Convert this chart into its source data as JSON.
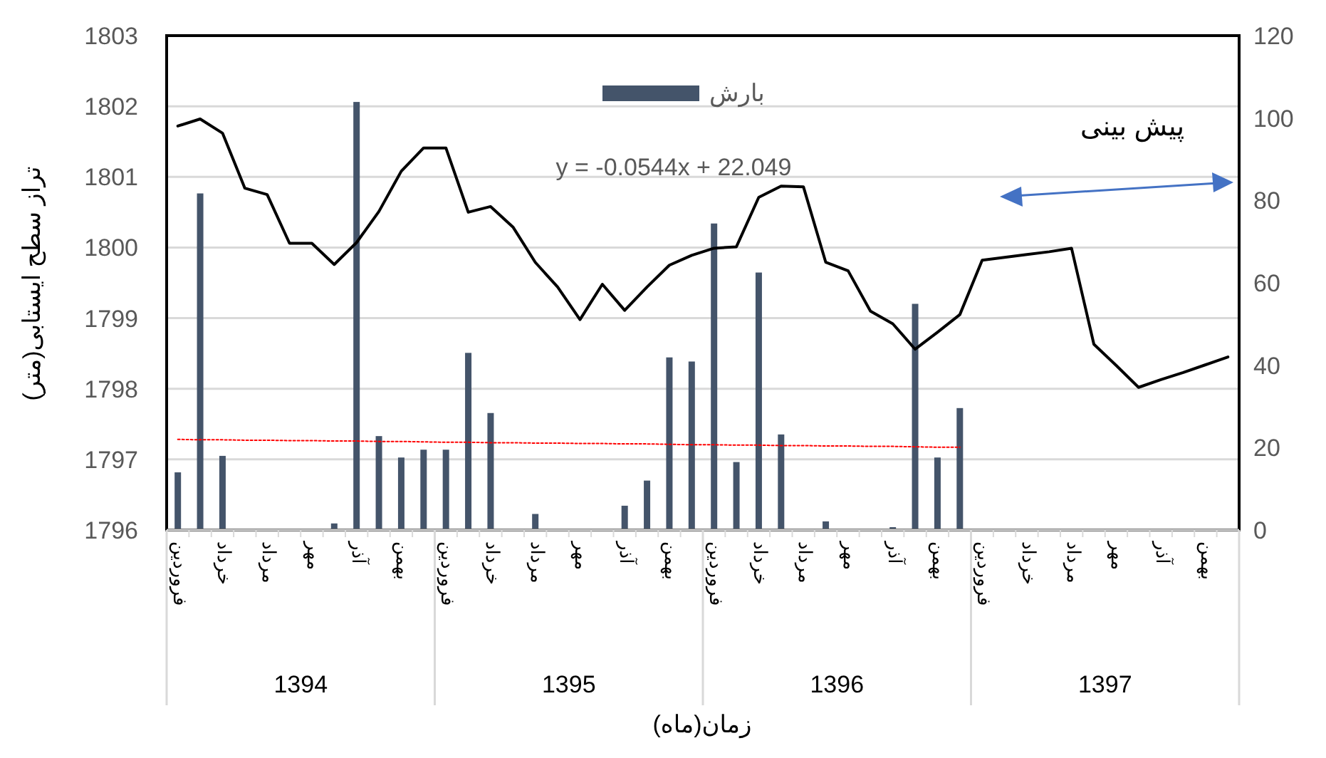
{
  "chart_data": {
    "type": "bar",
    "categories": [
      "فروردین",
      null,
      "خرداد",
      null,
      "مرداد",
      null,
      "مهر",
      null,
      "آذر",
      null,
      "بهمن",
      null,
      "فروردین",
      null,
      "خرداد",
      null,
      "مرداد",
      null,
      "مهر",
      null,
      "آذر",
      null,
      "بهمن",
      null,
      "فروردین",
      null,
      "خرداد",
      null,
      "مرداد",
      null,
      "مهر",
      null,
      "آذر",
      null,
      "بهمن",
      null,
      "فروردین",
      null,
      "خرداد",
      null,
      "مرداد",
      null,
      "مهر",
      null,
      "آذر",
      null,
      "بهمن",
      null
    ],
    "series": [
      {
        "name": "بارش",
        "type": "bar",
        "axis": "y2",
        "color": "#44546a",
        "values": [
          14.0,
          81.7,
          18.0,
          null,
          null,
          null,
          null,
          1.6,
          103.9,
          22.8,
          17.6,
          19.5,
          19.5,
          43.0,
          28.4,
          null,
          3.9,
          null,
          null,
          null,
          5.9,
          12.0,
          41.9,
          40.9,
          74.4,
          16.5,
          62.5,
          23.2,
          null,
          2.1,
          null,
          null,
          0.7,
          54.9,
          17.6,
          29.6,
          null,
          null,
          null,
          null,
          null,
          null,
          null,
          null,
          null,
          null,
          null,
          null
        ]
      },
      {
        "type": "line",
        "color": "#000000",
        "values": [
          1801.72,
          1801.82,
          1801.62,
          1800.84,
          1800.75,
          1800.06,
          1800.06,
          1799.76,
          1800.07,
          1800.51,
          1801.08,
          1801.41,
          1801.41,
          1800.5,
          1800.58,
          1800.29,
          1799.79,
          1799.44,
          1798.98,
          1799.48,
          1799.11,
          1799.44,
          1799.75,
          1799.89,
          1799.99,
          1800.01,
          1800.71,
          1800.87,
          1800.86,
          1799.79,
          1799.67,
          1799.1,
          1798.92,
          1798.56,
          1798.8,
          1799.05,
          1799.82,
          1799.86,
          1799.9,
          1799.94,
          1799.99,
          1798.63,
          1798.33,
          1798.02,
          1798.13,
          1798.23,
          1798.34,
          1798.45
        ]
      },
      {
        "type": "line",
        "axis": "y2",
        "color": "#ff0000",
        "line_style": "dotted",
        "values": [
          22.0,
          21.9,
          21.9,
          21.8,
          21.8,
          21.7,
          21.7,
          21.6,
          21.6,
          21.5,
          21.5,
          21.4,
          21.3,
          21.3,
          21.2,
          21.2,
          21.1,
          21.1,
          21.0,
          21.0,
          20.9,
          20.9,
          20.8,
          20.7,
          20.7,
          20.6,
          20.6,
          20.5,
          20.5,
          20.4,
          20.4,
          20.3,
          20.3,
          20.2,
          20.1,
          20.1,
          null,
          null,
          null,
          null,
          null,
          null,
          null,
          null,
          null,
          null,
          null,
          null
        ]
      }
    ],
    "ylim": [
      1796,
      1803
    ],
    "yticks": [
      1796,
      1797,
      1798,
      1799,
      1800,
      1801,
      1802,
      1803
    ],
    "y2lim": [
      0,
      120
    ],
    "y2ticks": [
      0,
      20,
      40,
      60,
      80,
      100,
      120
    ],
    "ylabel": "تراز سطح ایستابی(متر)",
    "xlabel": "زمان(ماه)",
    "annotations": [
      "y = -0.0544x + 22.049",
      "پیش بینی",
      "1394",
      "1395",
      "1396",
      "1397"
    ],
    "grid": "y",
    "legend": "top"
  }
}
